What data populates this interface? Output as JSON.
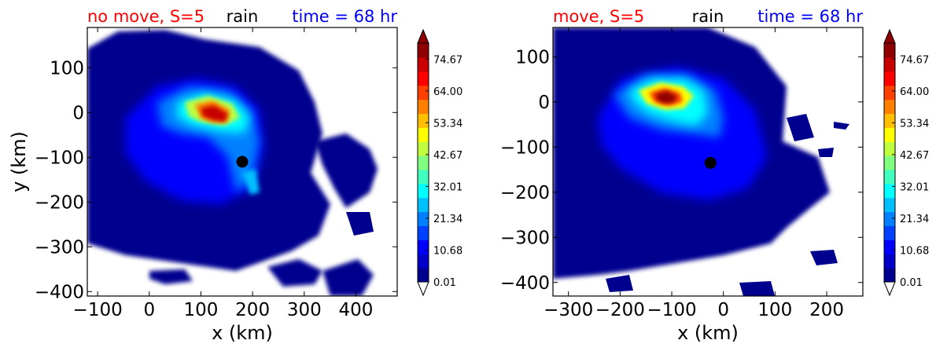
{
  "chart_data": [
    {
      "type": "heatmap",
      "title_left": "no move, S=5",
      "title_center": "rain",
      "title_right": "time = 68 hr",
      "title_colors": {
        "left": "#ff0000",
        "center": "#000000",
        "right": "#0000ff"
      },
      "xlabel": "x (km)",
      "ylabel": "y (km)",
      "xlim": [
        -120,
        480
      ],
      "ylim": [
        -410,
        190
      ],
      "xticks": [
        -100,
        0,
        100,
        200,
        300,
        400
      ],
      "xtick_labels": [
        "−100",
        "0",
        "100",
        "200",
        "300",
        "400"
      ],
      "yticks": [
        100,
        0,
        -100,
        -200,
        -300,
        -400
      ],
      "ytick_labels": [
        "100",
        "0",
        "−100",
        "−200",
        "−300",
        "−400"
      ],
      "center_marker": {
        "x": 180,
        "y": -110
      },
      "max_rain_center": {
        "x": 140,
        "y": 0
      }
    },
    {
      "type": "heatmap",
      "title_left": "move, S=5",
      "title_center": "rain",
      "title_right": "time = 68 hr",
      "title_colors": {
        "left": "#ff0000",
        "center": "#000000",
        "right": "#0000ff"
      },
      "xlabel": "x (km)",
      "ylabel": "",
      "xlim": [
        -330,
        270
      ],
      "ylim": [
        -430,
        165
      ],
      "xticks": [
        -300,
        -200,
        -100,
        0,
        100,
        200
      ],
      "xtick_labels": [
        "−300",
        "−200",
        "−100",
        "0",
        "100",
        "200"
      ],
      "yticks": [
        100,
        0,
        -100,
        -200,
        -300,
        -400
      ],
      "ytick_labels": [
        "100",
        "0",
        "−100",
        "−200",
        "−300",
        "−400"
      ],
      "center_marker": {
        "x": -25,
        "y": -135
      },
      "max_rain_center": {
        "x": -105,
        "y": 5
      }
    }
  ],
  "colorbar": {
    "tick_labels": [
      "74.67",
      "64.00",
      "53.34",
      "42.67",
      "32.01",
      "21.34",
      "10.68",
      "0.01"
    ],
    "tick_values": [
      74.67,
      64.0,
      53.34,
      42.67,
      32.01,
      21.34,
      10.68,
      0.01
    ],
    "range": [
      0.01,
      80.0
    ],
    "extend": "both",
    "colors": [
      "#00008f",
      "#0000c8",
      "#0000ff",
      "#0040ff",
      "#0080ff",
      "#00bfff",
      "#00ffff",
      "#40ffbf",
      "#80ff80",
      "#bfff40",
      "#ffff00",
      "#ffbf00",
      "#ff8000",
      "#ff4000",
      "#ff0000",
      "#c80000",
      "#8f0000"
    ]
  }
}
